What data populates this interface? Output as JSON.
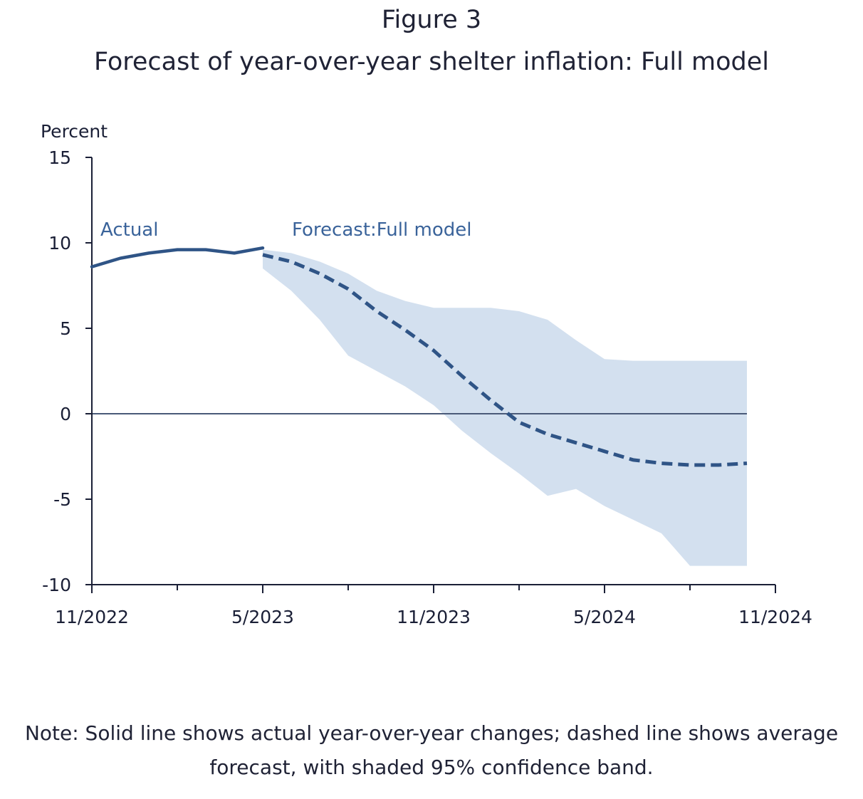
{
  "figure": {
    "number": "Figure 3",
    "title": "Forecast of year-over-year shelter inflation: Full model",
    "note": "Note: Solid line shows actual year-over-year changes; dashed line shows average forecast, with shaded 95% confidence band."
  },
  "colors": {
    "actual": "#2f5486",
    "forecast": "#2f5486",
    "band": "#d3e0ef",
    "axis": "#1a1f36",
    "zero_line": "#4a5a78",
    "series_label": "#3a639a"
  },
  "chart_data": {
    "type": "line",
    "ylabel": "Percent",
    "ylim": [
      -10,
      15
    ],
    "yticks": [
      15,
      10,
      5,
      0,
      -5,
      -10
    ],
    "x_axis": {
      "range": [
        "2022-11",
        "2024-11"
      ],
      "major_ticks": [
        "11/2022",
        "5/2023",
        "11/2023",
        "5/2024",
        "11/2024"
      ],
      "minor_tick_months": [
        "2023-02",
        "2023-08",
        "2024-02",
        "2024-08"
      ]
    },
    "grid": false,
    "zero_line": true,
    "series": [
      {
        "name": "Actual",
        "style": "solid",
        "x": [
          "2022-11",
          "2022-12",
          "2023-01",
          "2023-02",
          "2023-03",
          "2023-04",
          "2023-05"
        ],
        "y": [
          8.6,
          9.1,
          9.4,
          9.6,
          9.6,
          9.4,
          9.7
        ]
      },
      {
        "name": "Forecast:Full model",
        "style": "dashed",
        "x": [
          "2023-05",
          "2023-06",
          "2023-07",
          "2023-08",
          "2023-09",
          "2023-10",
          "2023-11",
          "2023-12",
          "2024-01",
          "2024-02",
          "2024-03",
          "2024-04",
          "2024-05",
          "2024-06",
          "2024-07",
          "2024-08",
          "2024-09",
          "2024-10"
        ],
        "y": [
          9.3,
          8.9,
          8.2,
          7.3,
          6.0,
          4.9,
          3.7,
          2.2,
          0.8,
          -0.5,
          -1.2,
          -1.7,
          -2.2,
          -2.7,
          -2.9,
          -3.0,
          -3.0,
          -2.9
        ]
      }
    ],
    "confidence_band": {
      "level": "95%",
      "x": [
        "2023-05",
        "2023-06",
        "2023-07",
        "2023-08",
        "2023-09",
        "2023-10",
        "2023-11",
        "2023-12",
        "2024-01",
        "2024-02",
        "2024-03",
        "2024-04",
        "2024-05",
        "2024-06",
        "2024-07",
        "2024-08",
        "2024-09",
        "2024-10"
      ],
      "lower": [
        8.5,
        7.2,
        5.5,
        3.4,
        2.5,
        1.6,
        0.5,
        -1.0,
        -2.3,
        -3.5,
        -4.8,
        -4.4,
        -5.4,
        -6.2,
        -7.0,
        -8.9,
        -8.9,
        -8.9
      ],
      "upper": [
        9.6,
        9.4,
        8.9,
        8.2,
        7.2,
        6.6,
        6.2,
        6.2,
        6.2,
        6.0,
        5.5,
        4.3,
        3.2,
        3.1,
        3.1,
        3.1,
        3.1,
        3.1
      ]
    }
  }
}
